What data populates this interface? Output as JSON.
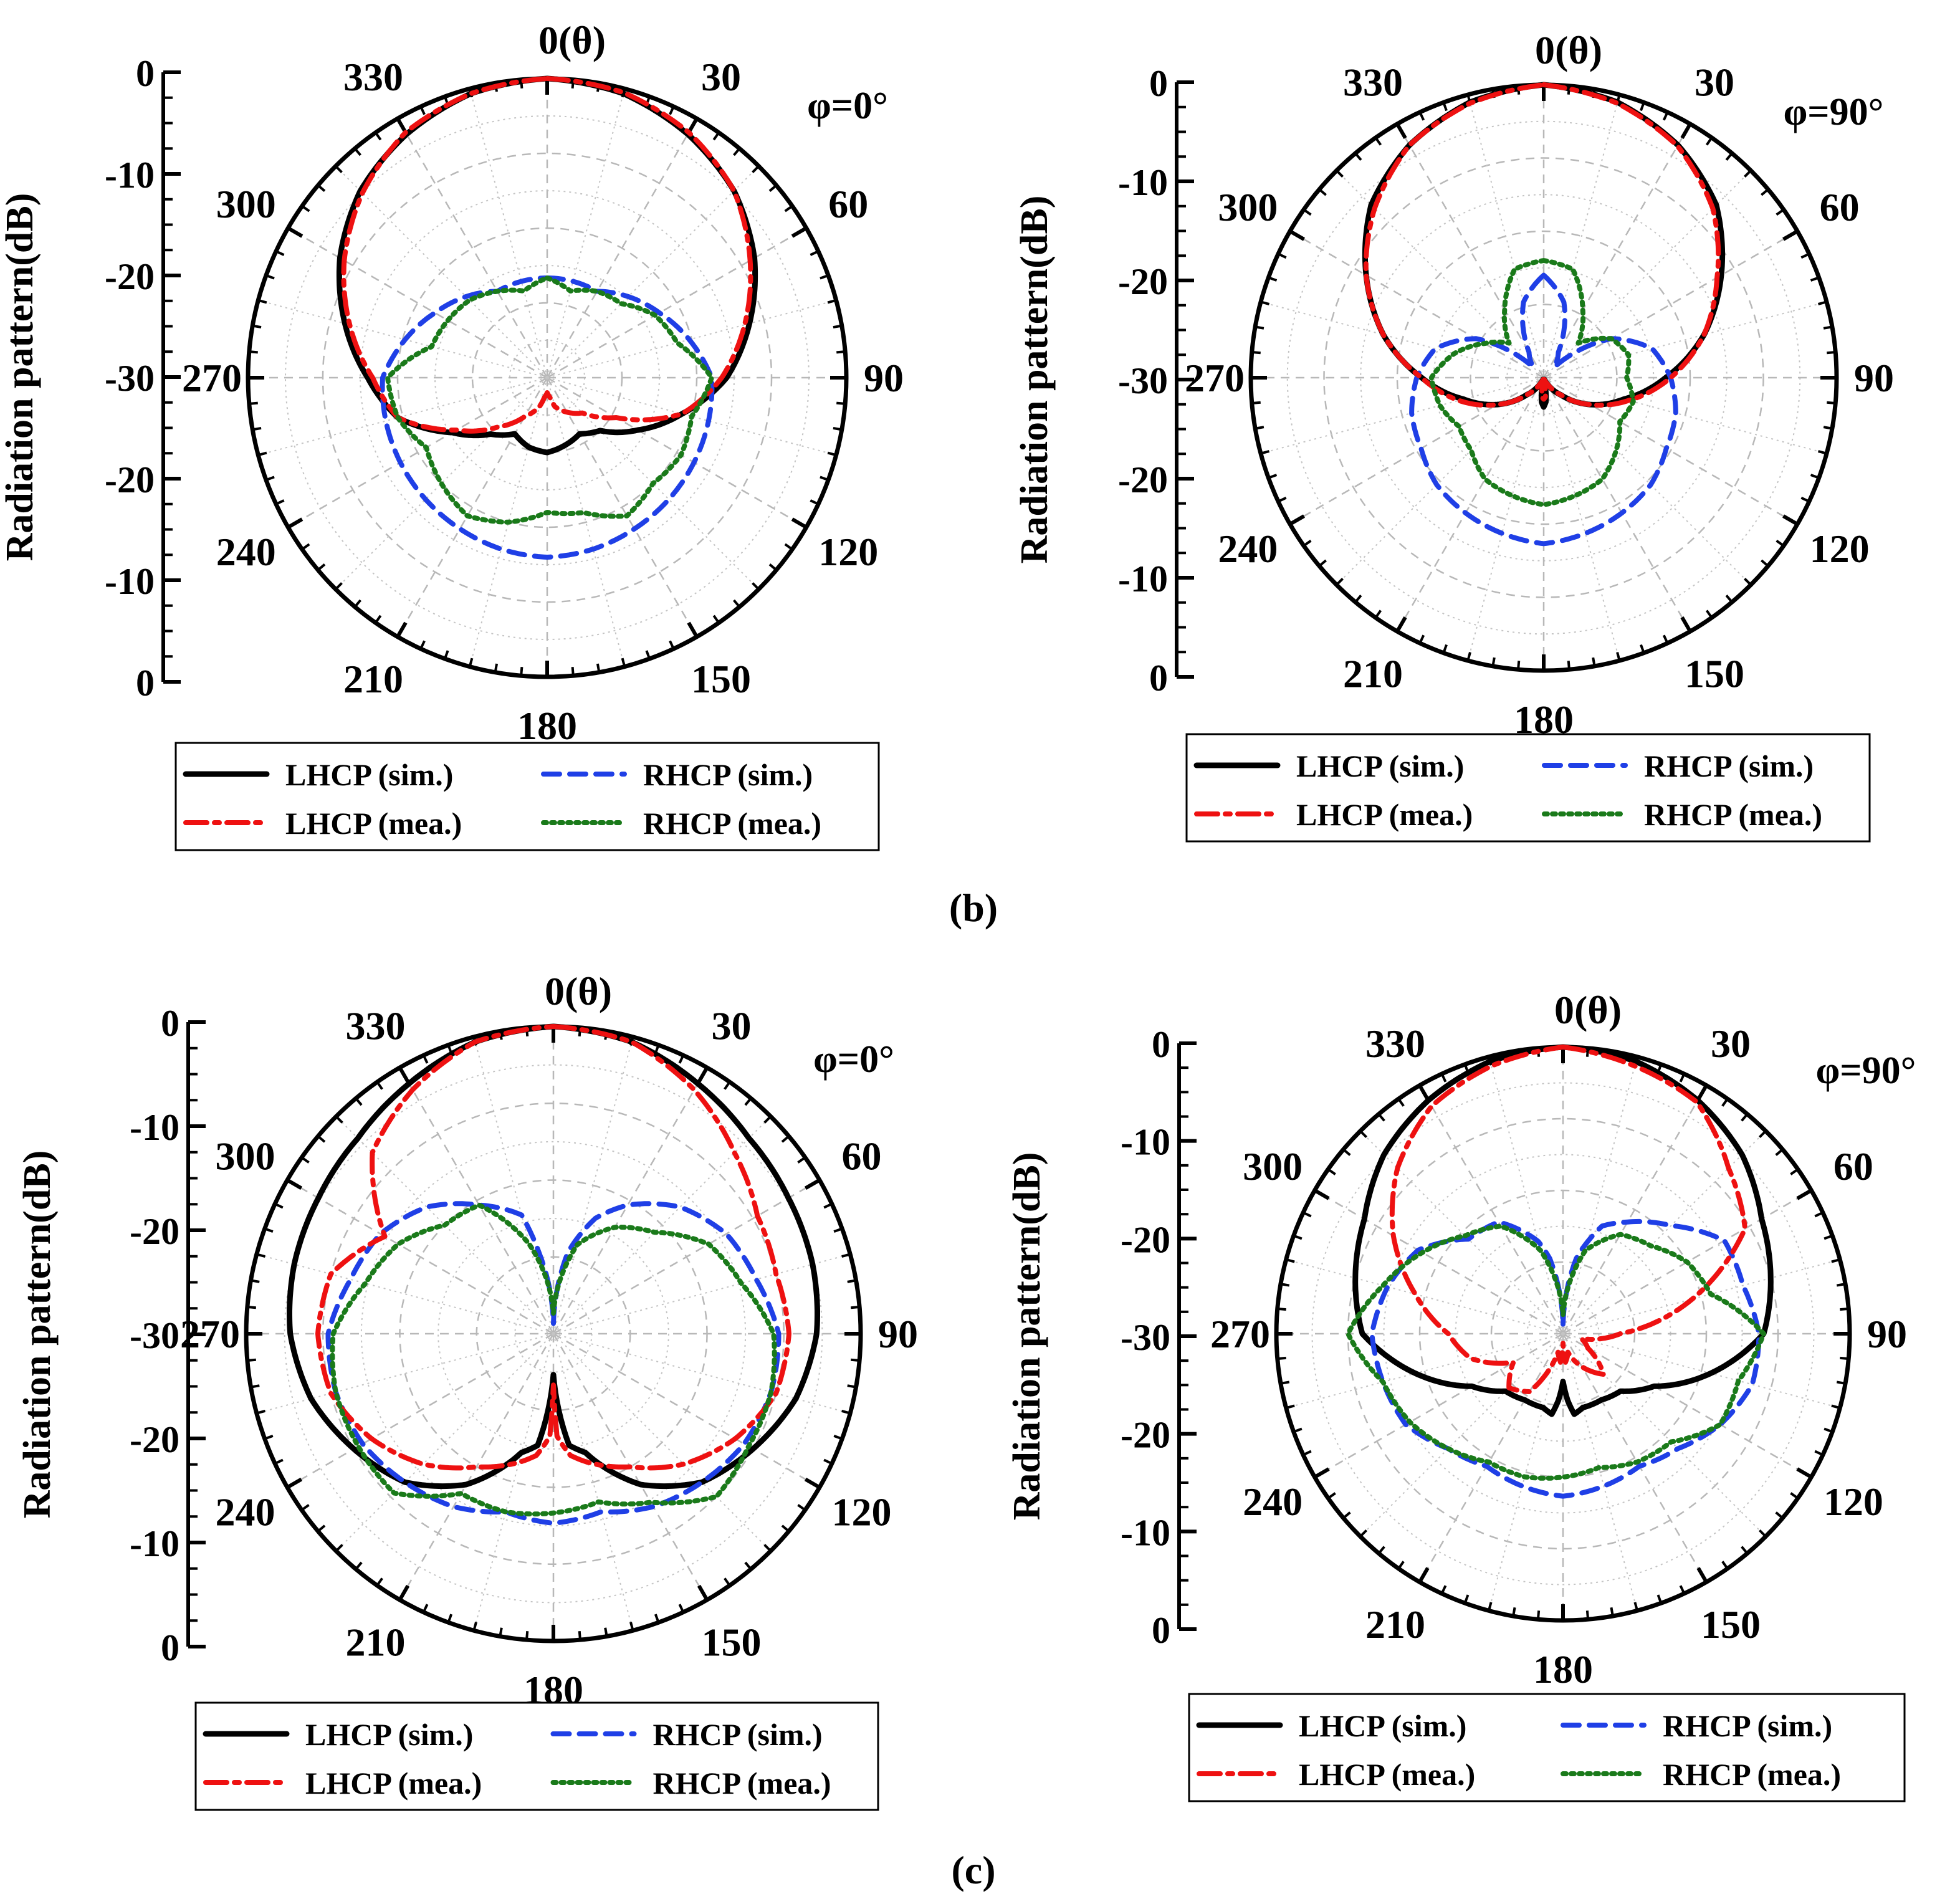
{
  "colors": {
    "lhcp_sim": "#000000",
    "rhcp_sim": "#1f3fe6",
    "lhcp_mea": "#ee1111",
    "rhcp_mea": "#1a7a1a"
  },
  "captions": {
    "b": "(b)",
    "c": "(c)"
  },
  "chart_data": [
    {
      "id": "b-left",
      "type": "polar-line",
      "phi_label": "φ=0°",
      "theta_label": "0(θ)",
      "ylabel": "Radiation pattern(dB)",
      "r_range": [
        -30,
        0
      ],
      "angle_labels": [
        "0(θ)",
        "30",
        "60",
        "90",
        "120",
        "150",
        "180",
        "210",
        "240",
        "270",
        "300",
        "330"
      ],
      "radial_ticks": [
        "0",
        "-10",
        "-20",
        "-30",
        "-20",
        "-10",
        "0"
      ],
      "legend": [
        "LHCP (sim.)",
        "RHCP (sim.)",
        "LHCP (mea.)",
        "RHCP (mea.)"
      ],
      "series": [
        {
          "name": "LHCP (sim.)",
          "key": "lhcp_sim",
          "theta": [
            0,
            15,
            30,
            45,
            60,
            75,
            90,
            105,
            120,
            135,
            150,
            165,
            180,
            195,
            210,
            225,
            240,
            255,
            270,
            285,
            300,
            315,
            330,
            345,
            360
          ],
          "values": [
            0,
            -0.5,
            -1.8,
            -3.5,
            -6,
            -9,
            -12,
            -16,
            -19.5,
            -22.5,
            -23.5,
            -23,
            -22.5,
            -22.8,
            -23.5,
            -22,
            -19,
            -14.5,
            -12,
            -9,
            -6,
            -3.5,
            -1.8,
            -0.5,
            0
          ]
        },
        {
          "name": "RHCP (sim.)",
          "key": "rhcp_sim",
          "theta": [
            0,
            30,
            60,
            90,
            120,
            150,
            165,
            180,
            195,
            210,
            240,
            270,
            300,
            330,
            360
          ],
          "values": [
            -20,
            -20,
            -17,
            -13.5,
            -13,
            -12.5,
            -12.2,
            -12,
            -12.2,
            -12.5,
            -13,
            -13.5,
            -17,
            -20,
            -20
          ]
        },
        {
          "name": "LHCP (mea.)",
          "key": "lhcp_mea",
          "theta": [
            0,
            15,
            30,
            45,
            60,
            75,
            90,
            105,
            120,
            135,
            150,
            165,
            172,
            180,
            188,
            195,
            210,
            225,
            240,
            255,
            270,
            285,
            300,
            315,
            330,
            345,
            360
          ],
          "values": [
            0,
            -0.4,
            -1.6,
            -3.5,
            -6.5,
            -9.5,
            -12.5,
            -16,
            -22,
            -25,
            -26,
            -27,
            -28,
            -28.5,
            -28,
            -27,
            -25.5,
            -23,
            -19.5,
            -14.5,
            -12.5,
            -9.5,
            -6.5,
            -3.8,
            -1.6,
            -0.5,
            0
          ]
        },
        {
          "name": "RHCP (mea.)",
          "key": "rhcp_mea",
          "theta": [
            0,
            15,
            30,
            45,
            60,
            75,
            90,
            105,
            120,
            135,
            150,
            165,
            180,
            195,
            210,
            225,
            240,
            255,
            270,
            285,
            300,
            315,
            330,
            345,
            360
          ],
          "values": [
            -20,
            -21,
            -20,
            -19.5,
            -17.5,
            -16.5,
            -13.5,
            -15,
            -14.5,
            -15,
            -14,
            -16,
            -16.5,
            -15,
            -14,
            -15,
            -16,
            -14.5,
            -14,
            -18,
            -18.5,
            -19,
            -20,
            -21,
            -20
          ]
        }
      ]
    },
    {
      "id": "b-right",
      "type": "polar-line",
      "phi_label": "φ=90°",
      "theta_label": "0(θ)",
      "ylabel": "Radiation pattern(dB)",
      "r_range": [
        -30,
        0
      ],
      "angle_labels": [
        "0(θ)",
        "30",
        "60",
        "90",
        "120",
        "150",
        "180",
        "210",
        "240",
        "270",
        "300",
        "330"
      ],
      "radial_ticks": [
        "0",
        "-10",
        "-20",
        "-30",
        "-20",
        "-10",
        "0"
      ],
      "legend": [
        "LHCP (sim.)",
        "RHCP (sim.)",
        "LHCP (mea.)",
        "RHCP (mea.)"
      ],
      "series": [
        {
          "name": "LHCP (sim.)",
          "key": "lhcp_sim",
          "theta": [
            0,
            15,
            30,
            45,
            60,
            75,
            90,
            105,
            120,
            135,
            150,
            160,
            170,
            175,
            180,
            185,
            190,
            200,
            210,
            225,
            240,
            255,
            270,
            285,
            300,
            315,
            330,
            345,
            360
          ],
          "values": [
            0,
            -0.8,
            -2.5,
            -5,
            -9,
            -13,
            -17.5,
            -21.5,
            -24.5,
            -27.5,
            -29.3,
            -29.8,
            -29,
            -27.5,
            -27,
            -27.5,
            -29,
            -29.8,
            -29.3,
            -27.5,
            -24.5,
            -21.5,
            -17.5,
            -13,
            -9,
            -5,
            -2.5,
            -0.8,
            0
          ]
        },
        {
          "name": "RHCP (sim.)",
          "key": "rhcp_sim",
          "theta": [
            0,
            15,
            30,
            45,
            60,
            75,
            90,
            105,
            120,
            135,
            150,
            165,
            180,
            195,
            210,
            225,
            240,
            255,
            270,
            285,
            300,
            315,
            330,
            345,
            360
          ],
          "values": [
            -19.5,
            -22,
            -27,
            -28.5,
            -22,
            -18.5,
            -17,
            -16,
            -15.5,
            -14.5,
            -14,
            -13.5,
            -13,
            -13.5,
            -14,
            -14.5,
            -15.5,
            -16,
            -17,
            -18.5,
            -22,
            -28.5,
            -27,
            -22,
            -19.5
          ]
        },
        {
          "name": "LHCP (mea.)",
          "key": "lhcp_mea",
          "theta": [
            0,
            15,
            30,
            45,
            60,
            75,
            90,
            105,
            120,
            135,
            150,
            160,
            170,
            175,
            180,
            185,
            190,
            200,
            210,
            225,
            240,
            255,
            270,
            285,
            300,
            315,
            330,
            345,
            360
          ],
          "values": [
            0,
            -0.9,
            -2.6,
            -5.5,
            -9.5,
            -13,
            -17,
            -21,
            -24.5,
            -27.5,
            -29.3,
            -29.8,
            -29.2,
            -28,
            -27.8,
            -28,
            -29.2,
            -29.8,
            -29.3,
            -27.5,
            -24.5,
            -21,
            -17.5,
            -13,
            -9,
            -5.5,
            -2.5,
            -0.9,
            0
          ]
        },
        {
          "name": "RHCP (mea.)",
          "key": "rhcp_mea",
          "theta": [
            0,
            15,
            30,
            45,
            60,
            75,
            90,
            105,
            120,
            135,
            150,
            165,
            180,
            195,
            210,
            225,
            240,
            255,
            270,
            285,
            300,
            315,
            330,
            345,
            360
          ],
          "values": [
            -18,
            -18.5,
            -22,
            -25,
            -22,
            -21,
            -21.5,
            -20.5,
            -21,
            -19.5,
            -18,
            -17.5,
            -17,
            -17.5,
            -18,
            -19.5,
            -20,
            -19,
            -18.5,
            -20.5,
            -23,
            -25,
            -22,
            -18.5,
            -18
          ]
        }
      ]
    },
    {
      "id": "c-left",
      "type": "polar-line",
      "phi_label": "φ=0°",
      "theta_label": "0(θ)",
      "ylabel": "Radiation pattern(dB)",
      "r_range": [
        -30,
        0
      ],
      "angle_labels": [
        "0(θ)",
        "30",
        "60",
        "90",
        "120",
        "150",
        "180",
        "210",
        "240",
        "270",
        "300",
        "330"
      ],
      "radial_ticks": [
        "0",
        "-10",
        "-20",
        "-30",
        "-20",
        "-10",
        "0"
      ],
      "legend": [
        "LHCP (sim.)",
        "RHCP (sim.)",
        "LHCP (mea.)",
        "RHCP (mea.)"
      ],
      "series": [
        {
          "name": "LHCP (sim.)",
          "key": "lhcp_sim",
          "theta": [
            0,
            15,
            30,
            45,
            60,
            75,
            90,
            105,
            120,
            135,
            150,
            165,
            172,
            176,
            180,
            184,
            188,
            195,
            210,
            225,
            240,
            255,
            270,
            285,
            300,
            315,
            330,
            345,
            360
          ],
          "values": [
            0,
            -0.5,
            -1.8,
            -3,
            -3.5,
            -3.8,
            -4.3,
            -5.5,
            -7.5,
            -9.5,
            -13,
            -18,
            -19,
            -22.5,
            -26,
            -22.5,
            -19,
            -18,
            -13,
            -9.5,
            -7.5,
            -5.5,
            -4.3,
            -3.8,
            -3.5,
            -3,
            -1.8,
            -0.5,
            0
          ]
        },
        {
          "name": "RHCP (sim.)",
          "key": "rhcp_sim",
          "theta": [
            0,
            10,
            20,
            30,
            45,
            60,
            75,
            90,
            105,
            120,
            135,
            150,
            165,
            180,
            195,
            210,
            225,
            240,
            255,
            270,
            285,
            300,
            315,
            330,
            345,
            350,
            360
          ],
          "values": [
            -29,
            -22,
            -18,
            -15.5,
            -12.5,
            -10.5,
            -9.5,
            -8,
            -8,
            -8.5,
            -9.5,
            -10.5,
            -12,
            -11.5,
            -12,
            -10.5,
            -9.5,
            -8.5,
            -8,
            -8,
            -9.5,
            -10.5,
            -12.5,
            -15.5,
            -18,
            -22,
            -29
          ]
        },
        {
          "name": "LHCP (mea.)",
          "key": "lhcp_mea",
          "theta": [
            0,
            15,
            30,
            45,
            60,
            75,
            90,
            105,
            120,
            135,
            150,
            165,
            172,
            178,
            180,
            182,
            188,
            195,
            210,
            225,
            240,
            255,
            270,
            285,
            300,
            315,
            330,
            345,
            360
          ],
          "values": [
            0,
            -0.5,
            -2.5,
            -5,
            -7,
            -7.5,
            -7,
            -7.5,
            -9.5,
            -12,
            -15,
            -17,
            -18,
            -20,
            -25,
            -20,
            -18,
            -17,
            -15,
            -12,
            -9.5,
            -7.5,
            -7,
            -7.5,
            -11,
            -5,
            -2.5,
            -0.5,
            0
          ]
        },
        {
          "name": "RHCP (mea.)",
          "key": "rhcp_mea",
          "theta": [
            0,
            15,
            30,
            45,
            60,
            75,
            90,
            105,
            120,
            135,
            150,
            165,
            180,
            195,
            210,
            225,
            240,
            255,
            270,
            285,
            300,
            315,
            330,
            345,
            360
          ],
          "values": [
            -28,
            -21,
            -18,
            -16,
            -12.5,
            -11,
            -8.5,
            -8,
            -8,
            -7.5,
            -11,
            -13,
            -12.5,
            -12,
            -12,
            -8,
            -8,
            -8,
            -8.5,
            -11,
            -12.5,
            -15,
            -15.5,
            -21,
            -28
          ]
        }
      ]
    },
    {
      "id": "c-right",
      "type": "polar-line",
      "phi_label": "φ=90°",
      "theta_label": "0(θ)",
      "ylabel": "Radiation pattern(dB)",
      "r_range": [
        -30,
        0
      ],
      "angle_labels": [
        "0(θ)",
        "30",
        "60",
        "90",
        "120",
        "150",
        "180",
        "210",
        "240",
        "270",
        "300",
        "330"
      ],
      "radial_ticks": [
        "0",
        "-10",
        "-20",
        "-30",
        "-20",
        "-10",
        "0"
      ],
      "legend": [
        "LHCP (sim.)",
        "RHCP (sim.)",
        "LHCP (mea.)",
        "RHCP (mea.)"
      ],
      "series": [
        {
          "name": "LHCP (sim.)",
          "key": "lhcp_sim",
          "theta": [
            0,
            15,
            30,
            45,
            60,
            75,
            90,
            105,
            120,
            135,
            150,
            165,
            172,
            176,
            180,
            184,
            188,
            195,
            210,
            225,
            240,
            255,
            270,
            285,
            300,
            315,
            330,
            345,
            360
          ],
          "values": [
            0,
            -0.5,
            -1.8,
            -3.5,
            -6,
            -7.5,
            -9,
            -14,
            -19,
            -21.5,
            -22,
            -22,
            -21.5,
            -23,
            -25,
            -23,
            -21.5,
            -22,
            -22,
            -21.5,
            -19,
            -14,
            -9,
            -7.5,
            -6,
            -3.5,
            -1.8,
            -0.5,
            0
          ]
        },
        {
          "name": "RHCP (sim.)",
          "key": "rhcp_sim",
          "theta": [
            0,
            10,
            20,
            30,
            45,
            60,
            75,
            90,
            105,
            120,
            135,
            150,
            165,
            180,
            195,
            210,
            225,
            240,
            255,
            270,
            285,
            300,
            315,
            330,
            345,
            350,
            360
          ],
          "values": [
            -29,
            -22,
            -18,
            -16.5,
            -14,
            -10.5,
            -10.5,
            -9.5,
            -9.5,
            -11,
            -13,
            -14,
            -13.5,
            -13,
            -13.5,
            -14,
            -13,
            -11,
            -10.5,
            -10,
            -11,
            -12.5,
            -16,
            -16.5,
            -20,
            -22,
            -29
          ]
        },
        {
          "name": "LHCP (mea.)",
          "key": "lhcp_mea",
          "theta": [
            0,
            15,
            30,
            45,
            60,
            75,
            90,
            105,
            120,
            135,
            150,
            165,
            175,
            180,
            185,
            195,
            210,
            225,
            240,
            255,
            270,
            285,
            300,
            315,
            330,
            345,
            360
          ],
          "values": [
            0,
            -1,
            -2,
            -5.5,
            -8,
            -16,
            -24,
            -28,
            -27,
            -24,
            -26,
            -28,
            -27,
            -29,
            -27,
            -28,
            -23,
            -22,
            -24,
            -20,
            -18,
            -14,
            -9.5,
            -5.5,
            -2.5,
            -1,
            0
          ]
        },
        {
          "name": "RHCP (mea.)",
          "key": "rhcp_mea",
          "theta": [
            0,
            15,
            30,
            45,
            60,
            75,
            90,
            105,
            120,
            135,
            150,
            165,
            180,
            195,
            210,
            225,
            240,
            255,
            270,
            285,
            300,
            315,
            330,
            345,
            360
          ],
          "values": [
            -28,
            -21,
            -18,
            -17,
            -15,
            -14,
            -9,
            -11,
            -11,
            -14,
            -14.5,
            -15.5,
            -15,
            -14.5,
            -14.5,
            -13,
            -11.5,
            -10.5,
            -7.5,
            -10.5,
            -13,
            -15.5,
            -17,
            -21,
            -28
          ]
        }
      ]
    }
  ]
}
